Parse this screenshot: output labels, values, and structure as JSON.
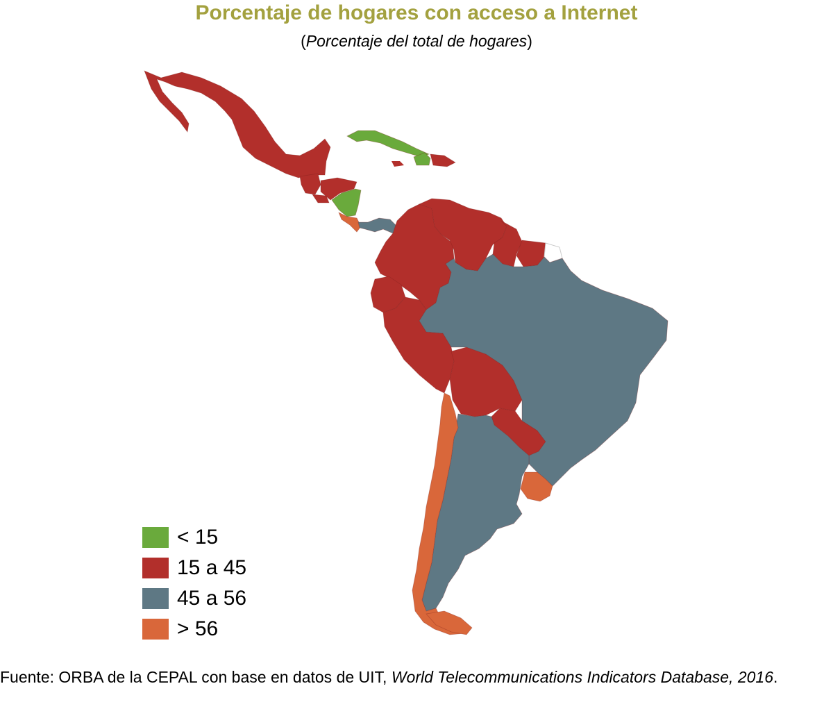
{
  "title": "Porcentaje de hogares con acceso a Internet",
  "subtitle": {
    "open": "(",
    "italic": "Porcentaje del total de hogares",
    "close": ")"
  },
  "colors": {
    "lt15": "#6aaa3c",
    "15to45": "#b22f2b",
    "45to56": "#5e7884",
    "gt56": "#d9673a",
    "no_data": "#ffffff",
    "title": "#a3a13f"
  },
  "legend": [
    {
      "label": "< 15",
      "color": "#6aaa3c"
    },
    {
      "label": "15 a 45",
      "color": "#b22f2b"
    },
    {
      "label": "45 a 56",
      "color": "#5e7884"
    },
    {
      "label": "> 56",
      "color": "#d9673a"
    }
  ],
  "regions": [
    {
      "name": "Mexico",
      "class": "15 a 45"
    },
    {
      "name": "Guatemala",
      "class": "15 a 45"
    },
    {
      "name": "Honduras",
      "class": "15 a 45"
    },
    {
      "name": "El Salvador",
      "class": "15 a 45"
    },
    {
      "name": "Nicaragua",
      "class": "< 15"
    },
    {
      "name": "Costa Rica",
      "class": "> 56"
    },
    {
      "name": "Panama",
      "class": "45 a 56"
    },
    {
      "name": "Cuba",
      "class": "< 15"
    },
    {
      "name": "Haiti",
      "class": "< 15"
    },
    {
      "name": "Dominican Republic",
      "class": "15 a 45"
    },
    {
      "name": "Colombia",
      "class": "15 a 45"
    },
    {
      "name": "Venezuela",
      "class": "15 a 45"
    },
    {
      "name": "Guyana",
      "class": "15 a 45"
    },
    {
      "name": "Suriname",
      "class": "15 a 45"
    },
    {
      "name": "Ecuador",
      "class": "15 a 45"
    },
    {
      "name": "Peru",
      "class": "15 a 45"
    },
    {
      "name": "Bolivia",
      "class": "15 a 45"
    },
    {
      "name": "Paraguay",
      "class": "15 a 45"
    },
    {
      "name": "Brazil",
      "class": "45 a 56"
    },
    {
      "name": "Argentina",
      "class": "45 a 56"
    },
    {
      "name": "Chile",
      "class": "> 56"
    },
    {
      "name": "Uruguay",
      "class": "> 56"
    }
  ],
  "source": {
    "prefix": "Fuente: ORBA de la CEPAL con base en datos de UIT, ",
    "italic": "World Telecommunications Indicators Database, 2016",
    "suffix": "."
  }
}
